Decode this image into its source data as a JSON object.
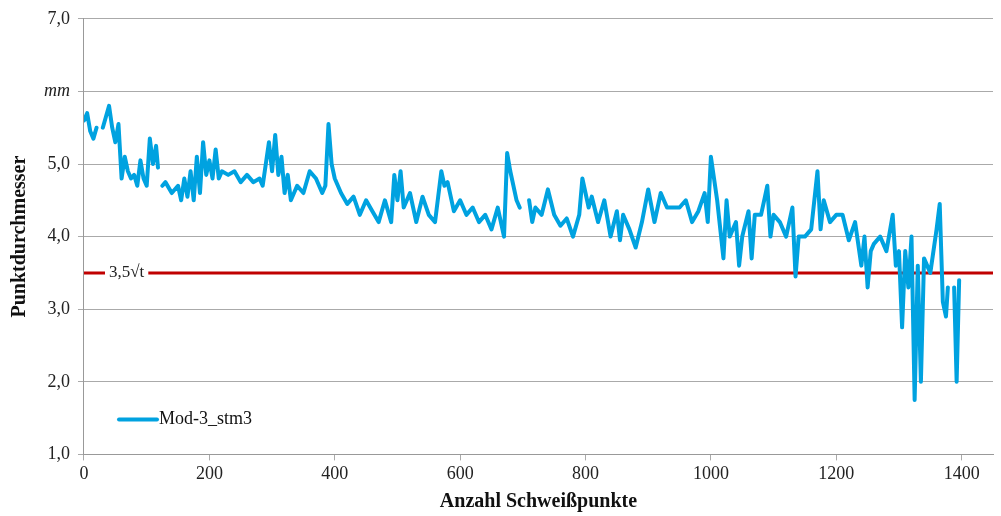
{
  "chart_data": {
    "type": "line",
    "xlabel": "Anzahl Schweißpunkte",
    "ylabel": "Punktdurchmesser",
    "x": [
      0,
      5,
      10,
      15,
      20,
      25,
      30,
      35,
      40,
      45,
      50,
      55,
      60,
      65,
      70,
      75,
      80,
      85,
      90,
      95,
      100,
      105,
      110,
      115,
      118,
      121,
      125,
      130,
      140,
      150,
      155,
      160,
      165,
      170,
      175,
      180,
      185,
      190,
      195,
      200,
      205,
      210,
      215,
      220,
      230,
      240,
      250,
      260,
      270,
      280,
      285,
      290,
      295,
      300,
      305,
      310,
      315,
      320,
      325,
      330,
      340,
      350,
      360,
      370,
      380,
      385,
      390,
      395,
      400,
      410,
      420,
      430,
      440,
      450,
      460,
      470,
      480,
      490,
      495,
      500,
      505,
      510,
      520,
      530,
      540,
      550,
      560,
      570,
      575,
      580,
      590,
      600,
      610,
      620,
      630,
      640,
      650,
      660,
      670,
      675,
      680,
      690,
      695,
      702,
      710,
      715,
      720,
      730,
      740,
      750,
      760,
      770,
      780,
      790,
      795,
      800,
      805,
      810,
      820,
      830,
      840,
      850,
      855,
      860,
      870,
      880,
      890,
      900,
      910,
      920,
      930,
      940,
      950,
      960,
      970,
      980,
      990,
      995,
      1000,
      1005,
      1010,
      1020,
      1025,
      1030,
      1040,
      1045,
      1050,
      1060,
      1065,
      1070,
      1080,
      1090,
      1095,
      1100,
      1110,
      1120,
      1130,
      1135,
      1140,
      1150,
      1160,
      1170,
      1175,
      1180,
      1190,
      1200,
      1210,
      1220,
      1230,
      1240,
      1245,
      1250,
      1255,
      1260,
      1270,
      1280,
      1290,
      1295,
      1300,
      1305,
      1310,
      1315,
      1320,
      1325,
      1330,
      1335,
      1340,
      1350,
      1360,
      1365,
      1370,
      1375,
      1378,
      1383,
      1388,
      1392,
      1396
    ],
    "series": [
      {
        "name": "Mod-3_stm3",
        "color": "#00a2e0",
        "values": [
          5.6,
          5.7,
          5.45,
          5.35,
          5.5,
          null,
          5.5,
          5.65,
          5.8,
          5.5,
          5.3,
          5.55,
          4.8,
          5.1,
          4.9,
          4.8,
          4.85,
          4.7,
          5.05,
          4.8,
          4.7,
          5.35,
          5.0,
          5.25,
          4.95,
          null,
          4.7,
          4.75,
          4.6,
          4.7,
          4.5,
          4.8,
          4.55,
          4.9,
          4.5,
          5.1,
          4.6,
          5.3,
          4.85,
          5.05,
          4.8,
          5.2,
          4.8,
          4.9,
          4.85,
          4.9,
          4.75,
          4.85,
          4.75,
          4.8,
          4.7,
          5.0,
          5.3,
          4.9,
          5.4,
          4.85,
          5.1,
          4.6,
          4.85,
          4.5,
          4.7,
          4.6,
          4.9,
          4.8,
          4.6,
          4.7,
          5.55,
          5.0,
          4.8,
          4.6,
          4.45,
          4.55,
          4.3,
          4.5,
          4.35,
          4.2,
          4.5,
          4.2,
          4.85,
          4.5,
          4.9,
          4.4,
          4.6,
          4.2,
          4.55,
          4.3,
          4.2,
          4.9,
          4.7,
          4.75,
          4.35,
          4.5,
          4.3,
          4.4,
          4.2,
          4.3,
          4.1,
          4.4,
          4.0,
          5.15,
          4.9,
          4.5,
          4.4,
          null,
          4.5,
          4.2,
          4.4,
          4.3,
          4.65,
          4.3,
          4.15,
          4.25,
          4.0,
          4.3,
          4.8,
          4.6,
          4.4,
          4.55,
          4.2,
          4.5,
          4.0,
          4.35,
          3.95,
          4.3,
          4.1,
          3.85,
          4.2,
          4.65,
          4.2,
          4.6,
          4.4,
          4.4,
          4.4,
          4.5,
          4.2,
          4.35,
          4.6,
          4.2,
          5.1,
          4.8,
          4.5,
          3.7,
          4.5,
          4.0,
          4.2,
          3.6,
          4.0,
          4.35,
          3.7,
          4.3,
          4.3,
          4.7,
          4.0,
          4.3,
          4.2,
          4.0,
          4.4,
          3.45,
          4.0,
          4.0,
          4.1,
          4.9,
          4.1,
          4.5,
          4.2,
          4.3,
          4.3,
          3.95,
          4.2,
          3.6,
          4.0,
          3.3,
          3.8,
          3.9,
          4.0,
          3.8,
          4.3,
          3.6,
          3.8,
          2.75,
          3.8,
          3.3,
          4.0,
          1.75,
          3.6,
          2.0,
          3.7,
          3.5,
          4.1,
          4.45,
          3.1,
          2.9,
          3.3,
          null,
          3.3,
          2.0,
          3.4
        ]
      }
    ],
    "xlim": [
      0,
      1450
    ],
    "xticks": [
      0,
      200,
      400,
      600,
      800,
      1000,
      1200,
      1400
    ],
    "ylim": [
      1,
      7
    ],
    "yticks": [
      {
        "value": 1,
        "label": "1,0"
      },
      {
        "value": 2,
        "label": "2,0"
      },
      {
        "value": 3,
        "label": "3,0"
      },
      {
        "value": 4,
        "label": "4,0"
      },
      {
        "value": 5,
        "label": "5,0"
      },
      {
        "value": 6,
        "label": "mm"
      },
      {
        "value": 7,
        "label": "7,0"
      }
    ],
    "ref_lines": [
      {
        "axis": "y",
        "value": 3.5,
        "label": "3,5√t",
        "color": "#c00000"
      }
    ],
    "grid": "y",
    "legend": "bottom left"
  }
}
